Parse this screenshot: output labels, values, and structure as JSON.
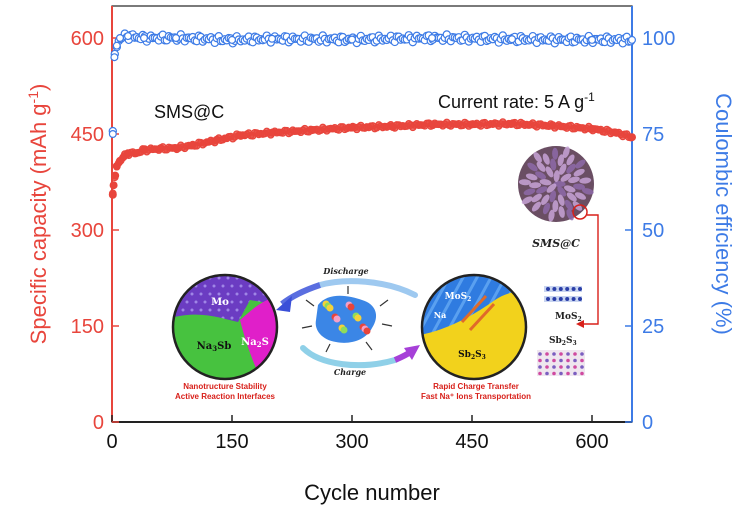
{
  "chart_data": {
    "type": "scatter",
    "xlabel": "Cycle number",
    "ylabel_left": "Specific capacity (mAh g",
    "ylabel_left_sup": "-1",
    "ylabel_left_close": ")",
    "ylabel_right": "Coulombic efficiency (%)",
    "xlim": [
      0,
      650
    ],
    "ylim_left": [
      0,
      650
    ],
    "ylim_right": [
      0,
      108.33
    ],
    "x_ticks": [
      "0",
      "150",
      "300",
      "450",
      "600"
    ],
    "x_tick_values": [
      0,
      150,
      300,
      450,
      600
    ],
    "y_left_ticks": [
      "0",
      "150",
      "300",
      "450",
      "600"
    ],
    "y_left_tick_values": [
      0,
      150,
      300,
      450,
      600
    ],
    "y_right_ticks": [
      "0",
      "25",
      "50",
      "75",
      "100"
    ],
    "y_right_tick_values": [
      0,
      25,
      50,
      75,
      100
    ],
    "series": [
      {
        "name": "Specific capacity",
        "axis": "left",
        "color": "#e8453c",
        "x": [
          1,
          2,
          4,
          6,
          10,
          15,
          20,
          30,
          40,
          60,
          80,
          100,
          130,
          160,
          200,
          250,
          300,
          350,
          400,
          450,
          500,
          550,
          600,
          630,
          650
        ],
        "y": [
          355,
          370,
          385,
          400,
          408,
          415,
          420,
          420,
          425,
          427,
          428,
          432,
          440,
          448,
          452,
          456,
          460,
          462,
          465,
          465,
          466,
          463,
          458,
          452,
          445
        ]
      },
      {
        "name": "Coulombic efficiency",
        "axis": "right",
        "color": "#3d7be6",
        "x": [
          1,
          3,
          6,
          10,
          20,
          40,
          80,
          150,
          200,
          300,
          400,
          500,
          600,
          650
        ],
        "y": [
          75,
          95,
          98,
          100,
          100.5,
          100,
          100,
          99.5,
          99.8,
          99.6,
          100,
          99.7,
          99.5,
          99.5
        ]
      }
    ],
    "annotations": {
      "sample_label": "SMS@C",
      "rate_label": "Current rate: 5 A g",
      "rate_sup": "-1"
    }
  },
  "inset": {
    "sms_label": "SMS@C",
    "mos2_label": "MoS",
    "mos2_sub": "2",
    "sb2s3_label": "Sb",
    "sb2s3_sub1": "2",
    "sb2s3_s": "S",
    "sb2s3_sub2": "3",
    "discharge_label": "Discharge",
    "charge_label": "Charge",
    "left_circle": {
      "mo": "Mo",
      "na3sb": "Na",
      "na3sb_sub": "3",
      "na3sb_tail": "Sb",
      "na2s": "Na",
      "na2s_sub": "2",
      "na2s_tail": "S"
    },
    "right_circle": {
      "mos2": "MoS",
      "mos2_sub": "2",
      "na": "Na",
      "sb2s3": "Sb",
      "sb2s3_sub1": "2",
      "sb2s3_s": "S",
      "sb2s3_sub2": "3"
    },
    "left_caption_1": "Nanotructure Stability",
    "left_caption_2": "Active Reaction Interfaces",
    "right_caption_1": "Rapid Charge Transfer",
    "right_caption_2": "Fast Na⁺ Ions Transportation"
  },
  "colors": {
    "capacity": "#e8453c",
    "efficiency": "#3d7be6",
    "left_axis": "#e8453c",
    "right_axis": "#3d7be6"
  }
}
